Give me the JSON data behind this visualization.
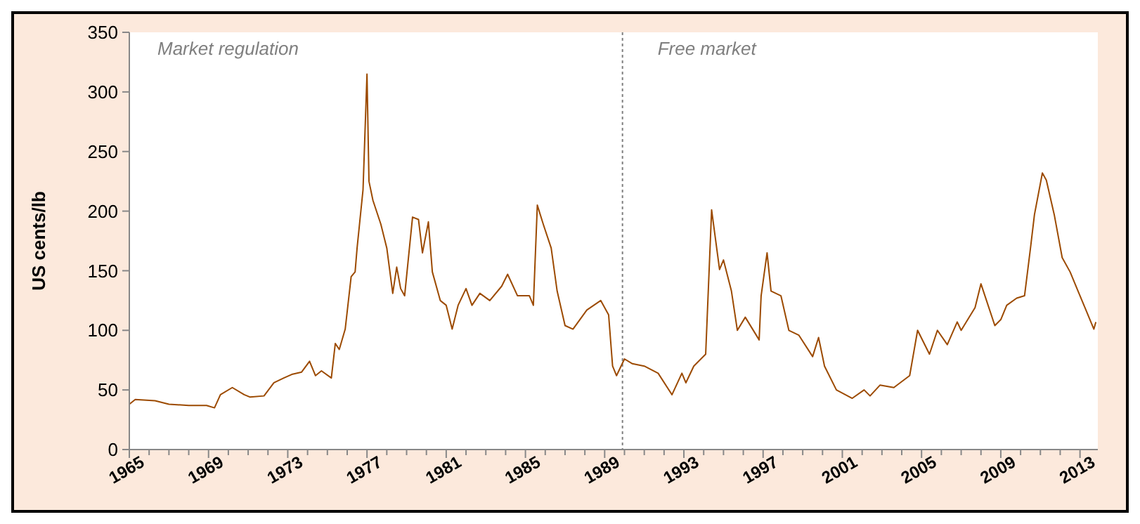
{
  "chart_data": {
    "type": "line",
    "ylabel": "US cents/lb",
    "annotations": [
      "Market regulation",
      "Free market"
    ],
    "xlim": [
      1965,
      2013.9
    ],
    "ylim": [
      0,
      350
    ],
    "yticks": [
      0,
      50,
      100,
      150,
      200,
      250,
      300,
      350
    ],
    "xticks": [
      1965,
      {
        "value": 1966,
        "label": null
      },
      {
        "value": 1967,
        "label": null
      },
      {
        "value": 1968,
        "label": null
      },
      1969,
      {
        "value": 1970,
        "label": null
      },
      {
        "value": 1971,
        "label": null
      },
      {
        "value": 1972,
        "label": null
      },
      1973,
      {
        "value": 1974,
        "label": null
      },
      {
        "value": 1975,
        "label": null
      },
      {
        "value": 1976,
        "label": null
      },
      1977,
      {
        "value": 1978,
        "label": null
      },
      {
        "value": 1979,
        "label": null
      },
      {
        "value": 1980,
        "label": null
      },
      1981,
      {
        "value": 1982,
        "label": null
      },
      {
        "value": 1983,
        "label": null
      },
      {
        "value": 1984,
        "label": null
      },
      1985,
      {
        "value": 1986,
        "label": null
      },
      {
        "value": 1987,
        "label": null
      },
      {
        "value": 1988,
        "label": null
      },
      1989,
      {
        "value": 1990,
        "label": null
      },
      {
        "value": 1991,
        "label": null
      },
      {
        "value": 1992,
        "label": null
      },
      1993,
      {
        "value": 1994,
        "label": null
      },
      {
        "value": 1995,
        "label": null
      },
      {
        "value": 1996,
        "label": null
      },
      1997,
      {
        "value": 1998,
        "label": null
      },
      {
        "value": 1999,
        "label": null
      },
      {
        "value": 2000,
        "label": null
      },
      2001,
      {
        "value": 2002,
        "label": null
      },
      {
        "value": 2003,
        "label": null
      },
      {
        "value": 2004,
        "label": null
      },
      2005,
      {
        "value": 2006,
        "label": null
      },
      {
        "value": 2007,
        "label": null
      },
      {
        "value": 2008,
        "label": null
      },
      2009,
      {
        "value": 2010,
        "label": null
      },
      {
        "value": 2011,
        "label": null
      },
      {
        "value": 2012,
        "label": null
      },
      2013
    ],
    "grid": false,
    "marker": "none",
    "line_style": "solid",
    "ref_lines": [
      {
        "axis": "x",
        "value": 1989.9,
        "color": "#808080",
        "line_style": "dotted"
      }
    ],
    "series": [
      {
        "color": "#9c4a00",
        "x": [
          1965.0,
          1965.3,
          1966.3,
          1967.0,
          1968.0,
          1968.9,
          1969.3,
          1969.6,
          1970.2,
          1970.8,
          1971.1,
          1971.8,
          1972.3,
          1972.8,
          1973.2,
          1973.7,
          1974.1,
          1974.4,
          1974.7,
          1975.2,
          1975.4,
          1975.6,
          1975.9,
          1976.2,
          1976.4,
          1976.5,
          1976.8,
          1977.0,
          1977.1,
          1977.3,
          1977.7,
          1978.0,
          1978.3,
          1978.5,
          1978.7,
          1978.9,
          1979.3,
          1979.6,
          1979.8,
          1980.1,
          1980.3,
          1980.7,
          1981.0,
          1981.3,
          1981.6,
          1982.0,
          1982.3,
          1982.7,
          1983.2,
          1983.8,
          1984.1,
          1984.6,
          1985.2,
          1985.4,
          1985.6,
          1985.9,
          1986.3,
          1986.6,
          1987.0,
          1987.4,
          1988.1,
          1988.8,
          1989.2,
          1989.4,
          1989.6,
          1990.0,
          1990.4,
          1991.0,
          1991.7,
          1992.4,
          1992.9,
          1993.1,
          1993.5,
          1994.1,
          1994.4,
          1994.8,
          1995.0,
          1995.4,
          1995.7,
          1996.1,
          1996.8,
          1996.9,
          1997.2,
          1997.4,
          1997.9,
          1998.3,
          1998.8,
          1999.5,
          1999.8,
          2000.1,
          2000.7,
          2001.5,
          2002.1,
          2002.4,
          2002.9,
          2003.6,
          2004.4,
          2004.8,
          2005.4,
          2005.8,
          2006.3,
          2006.8,
          2007.0,
          2007.7,
          2008.0,
          2008.2,
          2008.7,
          2009.0,
          2009.3,
          2009.8,
          2010.2,
          2010.5,
          2010.7,
          2011.1,
          2011.3,
          2011.7,
          2012.1,
          2012.5,
          2012.9,
          2013.3,
          2013.7,
          2013.8
        ],
        "values": [
          38,
          42,
          41,
          38,
          37,
          37,
          35,
          46,
          52,
          46,
          44,
          45,
          56,
          60,
          63,
          65,
          74,
          62,
          66,
          60,
          89,
          84,
          101,
          145,
          149,
          169,
          218,
          315,
          225,
          209,
          189,
          169,
          131,
          153,
          135,
          129,
          195,
          193,
          165,
          191,
          149,
          125,
          121,
          101,
          121,
          135,
          121,
          131,
          125,
          137,
          147,
          129,
          129,
          121,
          205,
          189,
          169,
          133,
          104,
          101,
          117,
          125,
          113,
          70,
          62,
          76,
          72,
          70,
          64,
          46,
          64,
          56,
          70,
          80,
          201,
          151,
          159,
          133,
          100,
          111,
          92,
          129,
          165,
          133,
          129,
          100,
          96,
          78,
          94,
          70,
          50,
          43,
          50,
          45,
          54,
          52,
          62,
          100,
          80,
          100,
          88,
          107,
          100,
          119,
          139,
          129,
          104,
          109,
          121,
          127,
          129,
          169,
          197,
          232,
          226,
          197,
          161,
          149,
          133,
          117,
          101,
          107
        ]
      }
    ]
  }
}
